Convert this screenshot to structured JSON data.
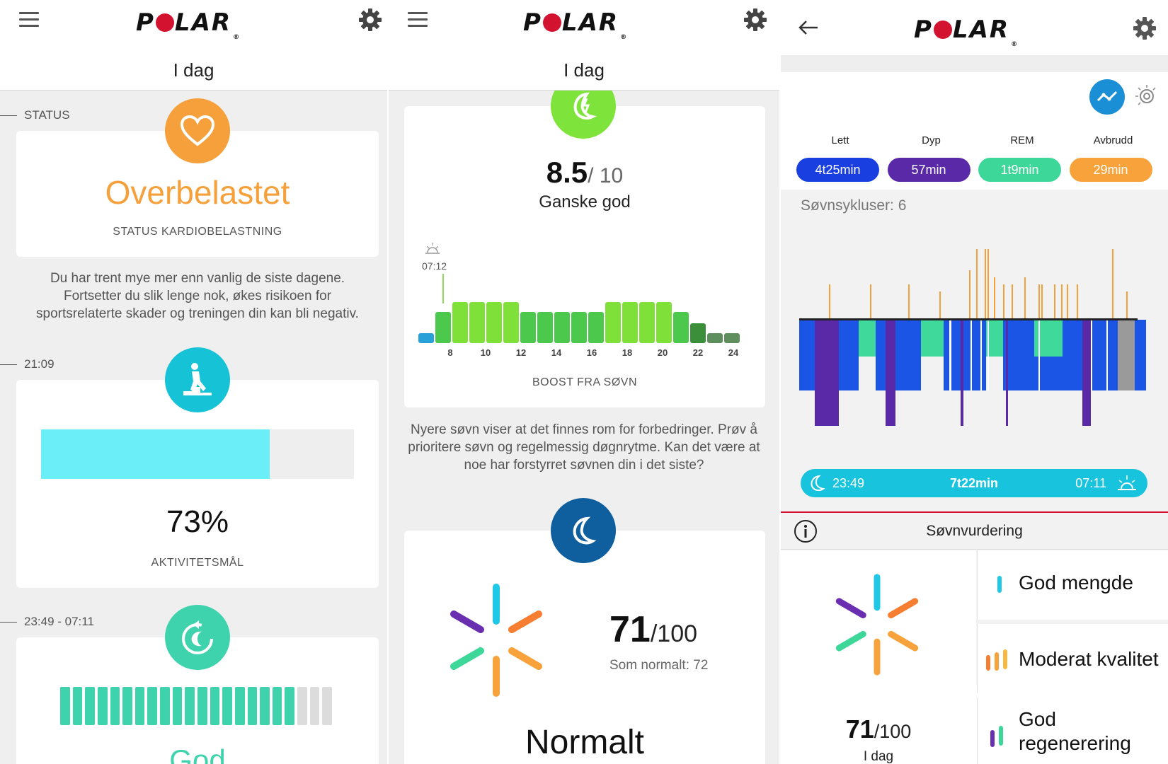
{
  "brand": "POLAR",
  "panel1": {
    "title": "I dag",
    "status_section": {
      "label": "STATUS",
      "headline": "Overbelastet",
      "subtitle": "STATUS KARDIOBELASTNING",
      "description": "Du har trent mye mer enn vanlig de siste dagene. Fortsetter du slik lenge nok, økes risikoen for sportsrelaterte skader og treningen din kan bli negativ."
    },
    "activity_section": {
      "label": "21:09",
      "progress": 0.73,
      "percent_text": "73%",
      "subtitle": "AKTIVITETSMÅL"
    },
    "sleep_section": {
      "label": "23:49 - 07:11",
      "bars_filled": 19,
      "bars_total": 22,
      "headline": "God"
    }
  },
  "panel2": {
    "title": "I dag",
    "boost_card": {
      "score": "8.5",
      "score_max": "/ 10",
      "rating": "Ganske god",
      "wake_time": "07:12",
      "x_ticks": [
        "8",
        "10",
        "12",
        "14",
        "16",
        "18",
        "20",
        "22",
        "24"
      ],
      "caption": "BOOST FRA SØVN"
    },
    "description": "Nyere søvn viser at det finnes rom for forbedringer. Prøv å prioritere søvn og regelmessig døgnrytme. Kan det være at noe har forstyrret søvnen din i det siste?",
    "score_card": {
      "score": "71",
      "score_max": "/100",
      "normal_text": "Som normalt: 72",
      "headline": "Normalt"
    }
  },
  "panel3": {
    "stages": [
      {
        "label": "Lett",
        "value": "4t25min",
        "color": "#1a3fe0"
      },
      {
        "label": "Dyp",
        "value": "57min",
        "color": "#5a29a8"
      },
      {
        "label": "REM",
        "value": "1t9min",
        "color": "#3ed79a"
      },
      {
        "label": "Avbrudd",
        "value": "29min",
        "color": "#f7a23a"
      }
    ],
    "cycles_text": "Søvnsykluser: 6",
    "timeline": {
      "start": "23:49",
      "duration": "7t22min",
      "end": "07:11"
    },
    "rating_header": "Søvnvurdering",
    "score": "71",
    "score_max": "/100",
    "score_caption": "I dag",
    "factors": [
      {
        "label": "God mengde"
      },
      {
        "label": "Moderat kvalitet"
      },
      {
        "label": "God regenerering"
      }
    ]
  },
  "colors": {
    "status_orange": "#f5a03a",
    "activity_cyan": "#16c2d6",
    "sleep_teal": "#3ed3ad",
    "boost_green": "#7ee33a",
    "moon_blue": "#0f5e9e",
    "brand_red": "#d3122f"
  }
}
